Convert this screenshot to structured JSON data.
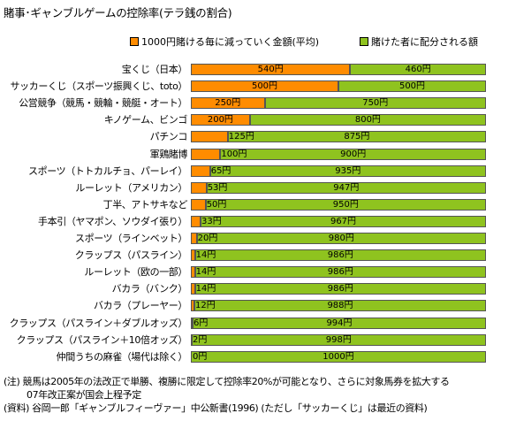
{
  "chart_data": {
    "type": "bar",
    "stacked": true,
    "orientation": "horizontal",
    "title": "賭事･ギャンブルゲームの控除率(テラ銭の割合)",
    "legend_position": "top",
    "xlim": [
      0,
      1000
    ],
    "series": [
      {
        "name": "1000円賭ける毎に減っていく金額(平均)",
        "color": "#ff8c00",
        "values": [
          540,
          500,
          250,
          200,
          125,
          100,
          65,
          53,
          50,
          33,
          20,
          14,
          14,
          14,
          12,
          6,
          2,
          0
        ],
        "labels": [
          "540円",
          "500円",
          "250円",
          "200円",
          "125円",
          "100円",
          "65円",
          "53円",
          "50円",
          "33円",
          "20円",
          "14円",
          "14円",
          "14円",
          "12円",
          "6円",
          "2円",
          "0円"
        ]
      },
      {
        "name": "賭けた者に配分される額",
        "color": "#8fc31f",
        "values": [
          460,
          500,
          750,
          800,
          875,
          900,
          935,
          947,
          950,
          967,
          980,
          986,
          986,
          986,
          988,
          994,
          998,
          1000
        ],
        "labels": [
          "460円",
          "500円",
          "750円",
          "800円",
          "875円",
          "900円",
          "935円",
          "947円",
          "950円",
          "967円",
          "980円",
          "986円",
          "986円",
          "986円",
          "988円",
          "994円",
          "998円",
          "1000円"
        ]
      }
    ],
    "categories": [
      "宝くじ（日本）",
      "サッカーくじ（スポーツ振興くじ、toto）",
      "公営競争（競馬・競輪・競艇・オート）",
      "キノゲーム、ビンゴ",
      "パチンコ",
      "軍鶏賭博",
      "スポーツ（トトカルチョ、パーレイ）",
      "ルーレット（アメリカン）",
      "丁半、アトサキなど",
      "手本引（ヤマポン、ソウダイ張り）",
      "スポーツ（ラインベット）",
      "クラップス（パスライン）",
      "ルーレット（欧の一部）",
      "バカラ（バンク）",
      "バカラ（プレーヤー）",
      "クラップス（パスライン＋ダブルオッズ）",
      "クラップス（パスライン＋10倍オッズ）",
      "仲間うちの麻雀（場代は除く）"
    ]
  },
  "notes": [
    "(注) 競馬は2005年の法改正で単勝、複勝に限定して控除率20%が可能となり、さらに対象馬券を拡大する",
    "07年改正案が国会上程予定",
    "(資料) 谷岡一郎「ギャンブルフィーヴァー」中公新書(1996) (ただし「サッカーくじ」は最近の資料)"
  ]
}
